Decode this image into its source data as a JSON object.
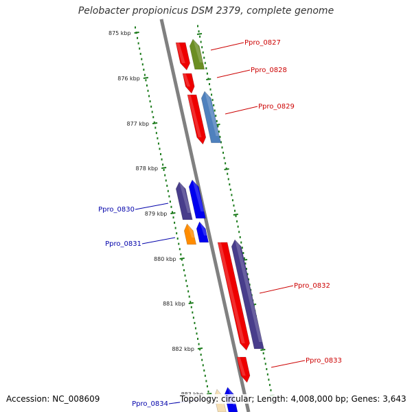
{
  "title": "Pelobacter propionicus DSM 2379, complete genome",
  "footer": {
    "accession": "Accession: NC_008609",
    "summary": "Topology: circular; Length: 4,008,000 bp; Genes: 3,643"
  },
  "colors": {
    "backbone": "#808080",
    "tick": "#1a7a1a",
    "label_top_strand": "#cc0000",
    "label_bottom_strand": "#0000aa"
  },
  "kbp_ticks": [
    {
      "label": "875 kbp"
    },
    {
      "label": "876 kbp"
    },
    {
      "label": "877 kbp"
    },
    {
      "label": "878 kbp"
    },
    {
      "label": "879 kbp"
    },
    {
      "label": "880 kbp"
    },
    {
      "label": "881 kbp"
    },
    {
      "label": "882 kbp"
    },
    {
      "label": "883 kbp"
    }
  ],
  "gene_labels": [
    {
      "name": "Ppro_0827",
      "strand": "top"
    },
    {
      "name": "Ppro_0828",
      "strand": "top"
    },
    {
      "name": "Ppro_0829",
      "strand": "top"
    },
    {
      "name": "Ppro_0830",
      "strand": "bottom"
    },
    {
      "name": "Ppro_0831",
      "strand": "bottom"
    },
    {
      "name": "Ppro_0832",
      "strand": "top"
    },
    {
      "name": "Ppro_0833",
      "strand": "top"
    },
    {
      "name": "Ppro_0834",
      "strand": "bottom"
    }
  ]
}
